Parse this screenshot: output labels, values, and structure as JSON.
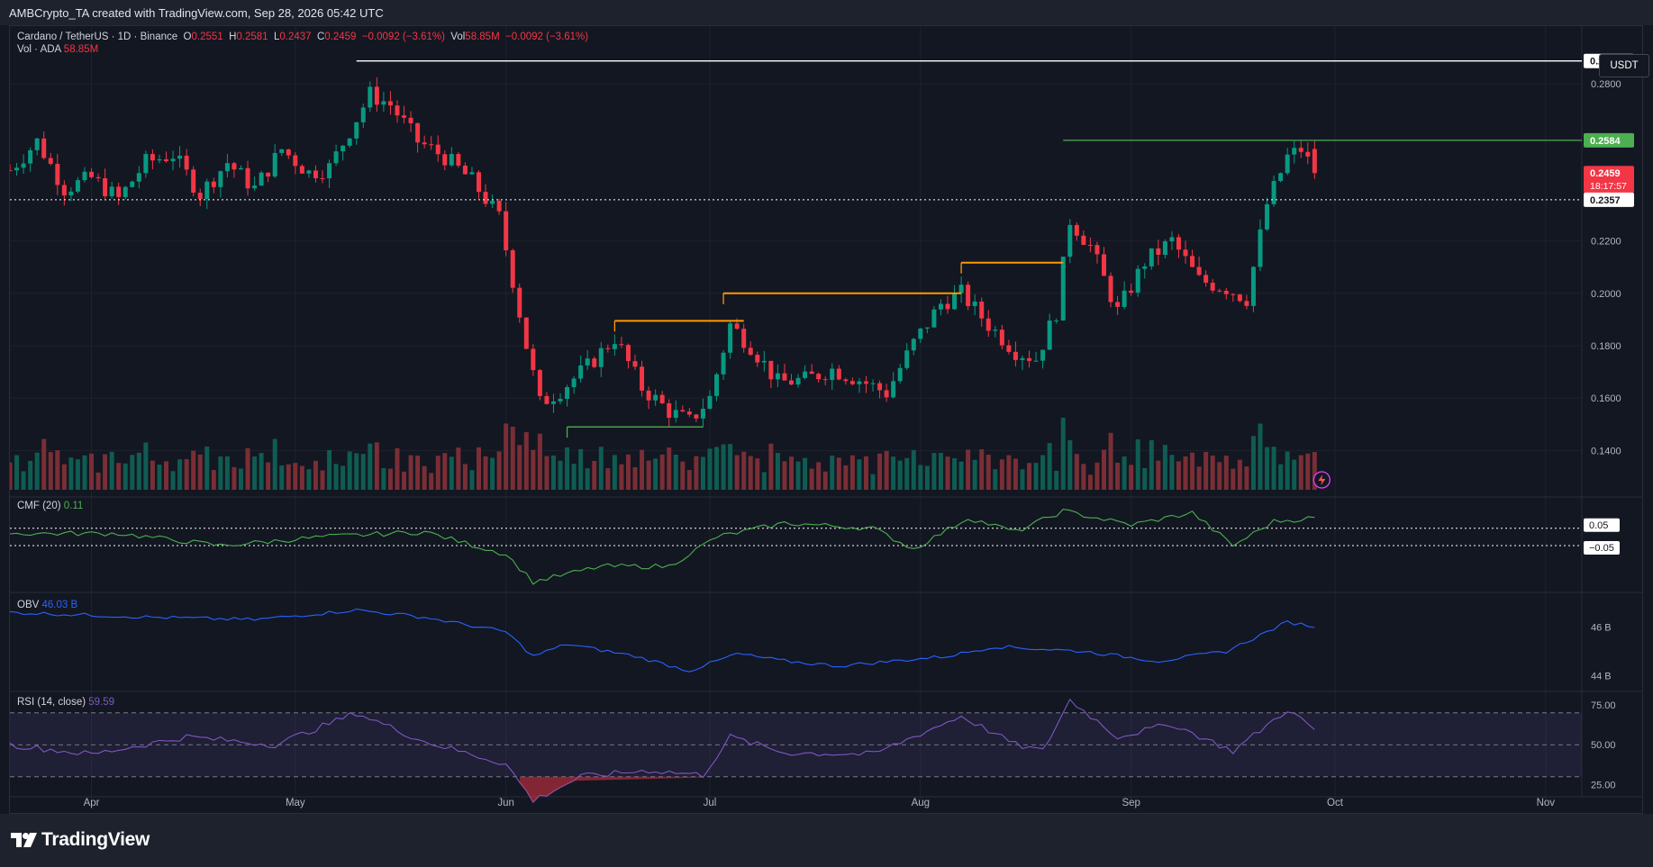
{
  "header": {
    "caption": "AMBCrypto_TA created with TradingView.com, Sep 28, 2026 05:42 UTC"
  },
  "legend": {
    "symbol": "Cardano / TetherUS · 1D · Binance",
    "o_label": "O",
    "o": "0.2551",
    "h_label": "H",
    "h": "0.2581",
    "l_label": "L",
    "l": "0.2437",
    "c_label": "C",
    "c": "0.2459",
    "change": "−0.0092 (−3.61%)",
    "vol_label": "Vol",
    "vol": "58.85M",
    "vol_change": "−0.0092 (−3.61%)",
    "vol_ada_label": "Vol · ADA",
    "vol_ada": "58.85M",
    "cmf_label": "CMF (20)",
    "cmf": "0.11",
    "obv_label": "OBV",
    "obv": "46.03 B",
    "rsi_label": "RSI (14, close)",
    "rsi": "59.59"
  },
  "currency_button": "USDT",
  "brand": "TradingView",
  "colors": {
    "up": "#089981",
    "down": "#f23645",
    "orange": "#ff9800",
    "green_line": "#4caf50",
    "cmf": "#4caf50",
    "obv": "#2962ff",
    "rsi": "#7e57c2",
    "background": "#131722"
  },
  "chart_data": [
    {
      "type": "candlestick",
      "title": "Cardano / TetherUS · 1D · Binance",
      "x_axis": {
        "type": "date",
        "ticks": [
          "Apr",
          "May",
          "Jun",
          "Jul",
          "Aug",
          "Sep",
          "Oct",
          "Nov"
        ],
        "range": [
          "2026-03-20",
          "2026-11-05"
        ]
      },
      "y_axis": {
        "ticks": [
          "0.1400",
          "0.1600",
          "0.1800",
          "0.2000",
          "0.2200",
          "0.2800"
        ],
        "range": [
          0.125,
          0.302
        ]
      },
      "price_labels": [
        {
          "value": "0.2887",
          "style": "white"
        },
        {
          "value": "0.2584",
          "style": "green"
        },
        {
          "value": "0.2459",
          "style": "red",
          "sub": "18:17:57"
        },
        {
          "value": "0.2357",
          "style": "white"
        }
      ],
      "series": [
        {
          "name": "close",
          "anchors": [
            [
              "2026-03-20",
              0.247
            ],
            [
              "2026-03-24",
              0.258
            ],
            [
              "2026-03-28",
              0.24
            ],
            [
              "2026-04-01",
              0.244
            ],
            [
              "2026-04-05",
              0.236
            ],
            [
              "2026-04-09",
              0.25
            ],
            [
              "2026-04-13",
              0.253
            ],
            [
              "2026-04-17",
              0.238
            ],
            [
              "2026-04-21",
              0.25
            ],
            [
              "2026-04-25",
              0.24
            ],
            [
              "2026-04-29",
              0.255
            ],
            [
              "2026-05-03",
              0.246
            ],
            [
              "2026-05-06",
              0.248
            ],
            [
              "2026-05-09",
              0.262
            ],
            [
              "2026-05-12",
              0.276
            ],
            [
              "2026-05-15",
              0.272
            ],
            [
              "2026-05-19",
              0.258
            ],
            [
              "2026-05-23",
              0.252
            ],
            [
              "2026-05-27",
              0.243
            ],
            [
              "2026-05-31",
              0.229
            ],
            [
              "2026-06-02",
              0.205
            ],
            [
              "2026-06-04",
              0.18
            ],
            [
              "2026-06-06",
              0.158
            ],
            [
              "2026-06-09",
              0.163
            ],
            [
              "2026-06-13",
              0.172
            ],
            [
              "2026-06-17",
              0.183
            ],
            [
              "2026-06-21",
              0.164
            ],
            [
              "2026-06-25",
              0.155
            ],
            [
              "2026-06-28",
              0.151
            ],
            [
              "2026-07-01",
              0.16
            ],
            [
              "2026-07-04",
              0.188
            ],
            [
              "2026-07-07",
              0.18
            ],
            [
              "2026-07-11",
              0.166
            ],
            [
              "2026-07-15",
              0.167
            ],
            [
              "2026-07-19",
              0.171
            ],
            [
              "2026-07-23",
              0.167
            ],
            [
              "2026-07-27",
              0.162
            ],
            [
              "2026-07-31",
              0.181
            ],
            [
              "2026-08-04",
              0.196
            ],
            [
              "2026-08-07",
              0.2
            ],
            [
              "2026-08-11",
              0.188
            ],
            [
              "2026-08-15",
              0.178
            ],
            [
              "2026-08-18",
              0.175
            ],
            [
              "2026-08-21",
              0.193
            ],
            [
              "2026-08-23",
              0.228
            ],
            [
              "2026-08-26",
              0.218
            ],
            [
              "2026-08-30",
              0.193
            ],
            [
              "2026-09-03",
              0.212
            ],
            [
              "2026-09-07",
              0.22
            ],
            [
              "2026-09-11",
              0.205
            ],
            [
              "2026-09-15",
              0.202
            ],
            [
              "2026-09-18",
              0.198
            ],
            [
              "2026-09-21",
              0.234
            ],
            [
              "2026-09-24",
              0.252
            ],
            [
              "2026-09-26",
              0.255
            ],
            [
              "2026-09-28",
              0.2459
            ]
          ]
        },
        {
          "name": "volume",
          "ticks": []
        }
      ],
      "horizontal_levels": [
        {
          "value": 0.2887,
          "from": "2026-05-10",
          "color": "white"
        },
        {
          "value": 0.2584,
          "from": "2026-08-22",
          "color": "green"
        },
        {
          "value": 0.2357,
          "from": "2026-03-20",
          "color": "white",
          "style": "dotted"
        },
        {
          "value": 0.1895,
          "from": "2026-06-17",
          "to": "2026-07-06",
          "color": "orange"
        },
        {
          "value": 0.2,
          "from": "2026-07-03",
          "to": "2026-08-07",
          "color": "orange"
        },
        {
          "value": 0.2117,
          "from": "2026-08-07",
          "to": "2026-08-22",
          "color": "orange"
        },
        {
          "value": 0.149,
          "from": "2026-06-10",
          "to": "2026-06-30",
          "color": "green"
        }
      ]
    },
    {
      "type": "line",
      "title": "CMF (20)",
      "last": 0.11,
      "levels": [
        "0.05",
        "−0.05"
      ],
      "series": [
        {
          "name": "CMF (20)",
          "anchors": [
            [
              "2026-03-20",
              0.02
            ],
            [
              "2026-04-05",
              0.02
            ],
            [
              "2026-04-20",
              -0.05
            ],
            [
              "2026-05-05",
              0.0
            ],
            [
              "2026-05-20",
              0.03
            ],
            [
              "2026-06-01",
              -0.1
            ],
            [
              "2026-06-05",
              -0.26
            ],
            [
              "2026-06-15",
              -0.17
            ],
            [
              "2026-06-25",
              -0.17
            ],
            [
              "2026-07-02",
              0.0
            ],
            [
              "2026-07-12",
              0.08
            ],
            [
              "2026-07-25",
              0.05
            ],
            [
              "2026-07-31",
              -0.07
            ],
            [
              "2026-08-08",
              0.11
            ],
            [
              "2026-08-15",
              0.03
            ],
            [
              "2026-08-22",
              0.15
            ],
            [
              "2026-09-01",
              0.07
            ],
            [
              "2026-09-10",
              0.14
            ],
            [
              "2026-09-16",
              -0.05
            ],
            [
              "2026-09-22",
              0.09
            ],
            [
              "2026-09-28",
              0.11
            ]
          ]
        }
      ]
    },
    {
      "type": "line",
      "title": "OBV",
      "last": "46.03 B",
      "y_axis": {
        "ticks": [
          "46 B",
          "44 B"
        ]
      },
      "series": [
        {
          "name": "OBV",
          "anchors": [
            [
              "2026-03-20",
              46.6
            ],
            [
              "2026-04-10",
              46.4
            ],
            [
              "2026-04-25",
              46.3
            ],
            [
              "2026-05-10",
              46.7
            ],
            [
              "2026-05-20",
              46.4
            ],
            [
              "2026-06-01",
              45.8
            ],
            [
              "2026-06-05",
              44.8
            ],
            [
              "2026-06-10",
              45.3
            ],
            [
              "2026-06-20",
              44.8
            ],
            [
              "2026-06-28",
              44.2
            ],
            [
              "2026-07-05",
              44.9
            ],
            [
              "2026-07-12",
              44.6
            ],
            [
              "2026-07-20",
              44.4
            ],
            [
              "2026-08-05",
              44.8
            ],
            [
              "2026-08-12",
              45.2
            ],
            [
              "2026-08-25",
              45.0
            ],
            [
              "2026-09-05",
              44.6
            ],
            [
              "2026-09-15",
              45.0
            ],
            [
              "2026-09-24",
              46.2
            ],
            [
              "2026-09-28",
              46.03
            ]
          ]
        }
      ]
    },
    {
      "type": "line",
      "title": "RSI (14, close)",
      "last": 59.59,
      "y_axis": {
        "ticks": [
          "75.00",
          "50.00",
          "25.00"
        ],
        "range": [
          18,
          80
        ]
      },
      "series": [
        {
          "name": "RSI (14, close)",
          "anchors": [
            [
              "2026-03-20",
              50
            ],
            [
              "2026-04-01",
              44
            ],
            [
              "2026-04-15",
              55
            ],
            [
              "2026-04-28",
              50
            ],
            [
              "2026-05-10",
              70
            ],
            [
              "2026-05-20",
              52
            ],
            [
              "2026-06-01",
              38
            ],
            [
              "2026-06-05",
              15
            ],
            [
              "2026-06-12",
              30
            ],
            [
              "2026-06-22",
              34
            ],
            [
              "2026-06-30",
              31
            ],
            [
              "2026-07-04",
              55
            ],
            [
              "2026-07-12",
              45
            ],
            [
              "2026-07-25",
              44
            ],
            [
              "2026-08-07",
              68
            ],
            [
              "2026-08-15",
              50
            ],
            [
              "2026-08-19",
              46
            ],
            [
              "2026-08-23",
              78
            ],
            [
              "2026-08-30",
              55
            ],
            [
              "2026-09-07",
              63
            ],
            [
              "2026-09-16",
              46
            ],
            [
              "2026-09-24",
              72
            ],
            [
              "2026-09-28",
              59.59
            ]
          ]
        }
      ]
    }
  ]
}
